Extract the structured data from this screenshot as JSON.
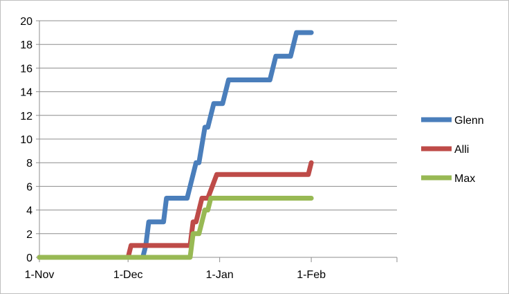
{
  "chart_data": {
    "type": "line",
    "title": "",
    "xlabel": "",
    "ylabel": "",
    "x_ticks": [
      {
        "date": "2015-11-01",
        "label": "1-Nov"
      },
      {
        "date": "2015-12-01",
        "label": "1-Dec"
      },
      {
        "date": "2016-01-01",
        "label": "1-Jan"
      },
      {
        "date": "2016-02-01",
        "label": "1-Feb"
      },
      {
        "date": "2016-03-01",
        "label": ""
      }
    ],
    "xlim": [
      "2015-11-01",
      "2016-03-01"
    ],
    "ylim": [
      0,
      20
    ],
    "y_ticks": [
      0,
      2,
      4,
      6,
      8,
      10,
      12,
      14,
      16,
      18,
      20
    ],
    "grid": "horizontal",
    "legend_position": "right",
    "series": [
      {
        "name": "Glenn",
        "color": "#4a7ebb",
        "points": [
          [
            "2015-11-01",
            0
          ],
          [
            "2015-12-06",
            0
          ],
          [
            "2015-12-07",
            1
          ],
          [
            "2015-12-08",
            3
          ],
          [
            "2015-12-13",
            3
          ],
          [
            "2015-12-14",
            5
          ],
          [
            "2015-12-21",
            5
          ],
          [
            "2015-12-24",
            8
          ],
          [
            "2015-12-25",
            8
          ],
          [
            "2015-12-27",
            11
          ],
          [
            "2015-12-28",
            11
          ],
          [
            "2015-12-30",
            13
          ],
          [
            "2016-01-02",
            13
          ],
          [
            "2016-01-04",
            15
          ],
          [
            "2016-01-18",
            15
          ],
          [
            "2016-01-20",
            17
          ],
          [
            "2016-01-25",
            17
          ],
          [
            "2016-01-27",
            19
          ],
          [
            "2016-02-01",
            19
          ]
        ]
      },
      {
        "name": "Alli",
        "color": "#be4b48",
        "points": [
          [
            "2015-11-01",
            0
          ],
          [
            "2015-12-01",
            0
          ],
          [
            "2015-12-02",
            1
          ],
          [
            "2015-12-22",
            1
          ],
          [
            "2015-12-23",
            3
          ],
          [
            "2015-12-24",
            3
          ],
          [
            "2015-12-26",
            5
          ],
          [
            "2015-12-28",
            5
          ],
          [
            "2015-12-31",
            7
          ],
          [
            "2016-01-31",
            7
          ],
          [
            "2016-02-01",
            8
          ]
        ]
      },
      {
        "name": "Max",
        "color": "#98b954",
        "points": [
          [
            "2015-11-01",
            0
          ],
          [
            "2015-12-22",
            0
          ],
          [
            "2015-12-23",
            2
          ],
          [
            "2015-12-25",
            2
          ],
          [
            "2015-12-27",
            4
          ],
          [
            "2015-12-28",
            4
          ],
          [
            "2015-12-29",
            5
          ],
          [
            "2016-02-01",
            5
          ]
        ]
      }
    ]
  }
}
